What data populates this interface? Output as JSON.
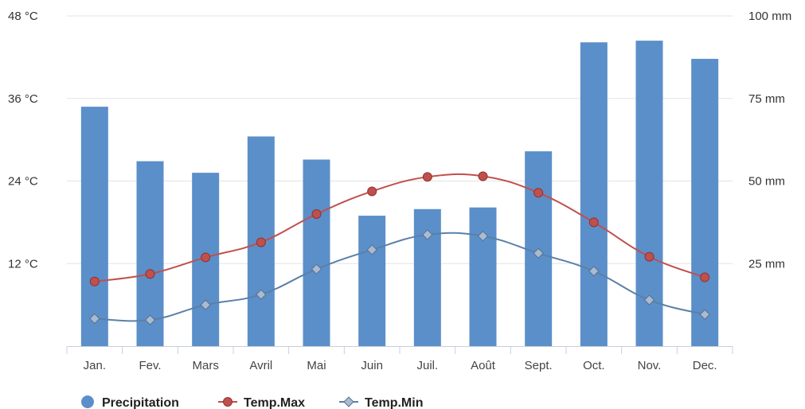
{
  "chart_data": {
    "type": "bar",
    "categories": [
      "Jan.",
      "Fev.",
      "Mars",
      "Avril",
      "Mai",
      "Juin",
      "Juil.",
      "Août",
      "Sept.",
      "Oct.",
      "Nov.",
      "Dec."
    ],
    "series": [
      {
        "name": "Precipitation",
        "type": "bar",
        "axis": "right",
        "color": "#5b8fc9",
        "values": [
          72.5,
          56,
          52.5,
          63.5,
          56.5,
          39.5,
          41.5,
          42,
          59,
          92,
          92.5,
          87
        ]
      },
      {
        "name": "Temp.Max",
        "type": "line",
        "axis": "left",
        "color": "#c0504d",
        "marker": "circle",
        "values": [
          9.4,
          10.5,
          12.9,
          15.1,
          19.2,
          22.5,
          24.6,
          24.7,
          22.3,
          18,
          13,
          10
        ]
      },
      {
        "name": "Temp.Min",
        "type": "line",
        "axis": "left",
        "color": "#5a80a8",
        "marker": "diamond",
        "values": [
          4,
          3.8,
          6,
          7.5,
          11.2,
          14,
          16.2,
          16,
          13.5,
          10.9,
          6.7,
          4.6
        ]
      }
    ],
    "y_left": {
      "ticks": [
        "12 °C",
        "24 °C",
        "36 °C",
        "48 °C"
      ],
      "tick_values": [
        12,
        24,
        36,
        48
      ],
      "ylim": [
        0,
        48
      ]
    },
    "y_right": {
      "ticks": [
        "25 mm",
        "50 mm",
        "75 mm",
        "100 mm"
      ],
      "tick_values": [
        25,
        50,
        75,
        100
      ],
      "ylim": [
        0,
        100
      ]
    },
    "grid": true,
    "legend_position": "bottom-left"
  }
}
